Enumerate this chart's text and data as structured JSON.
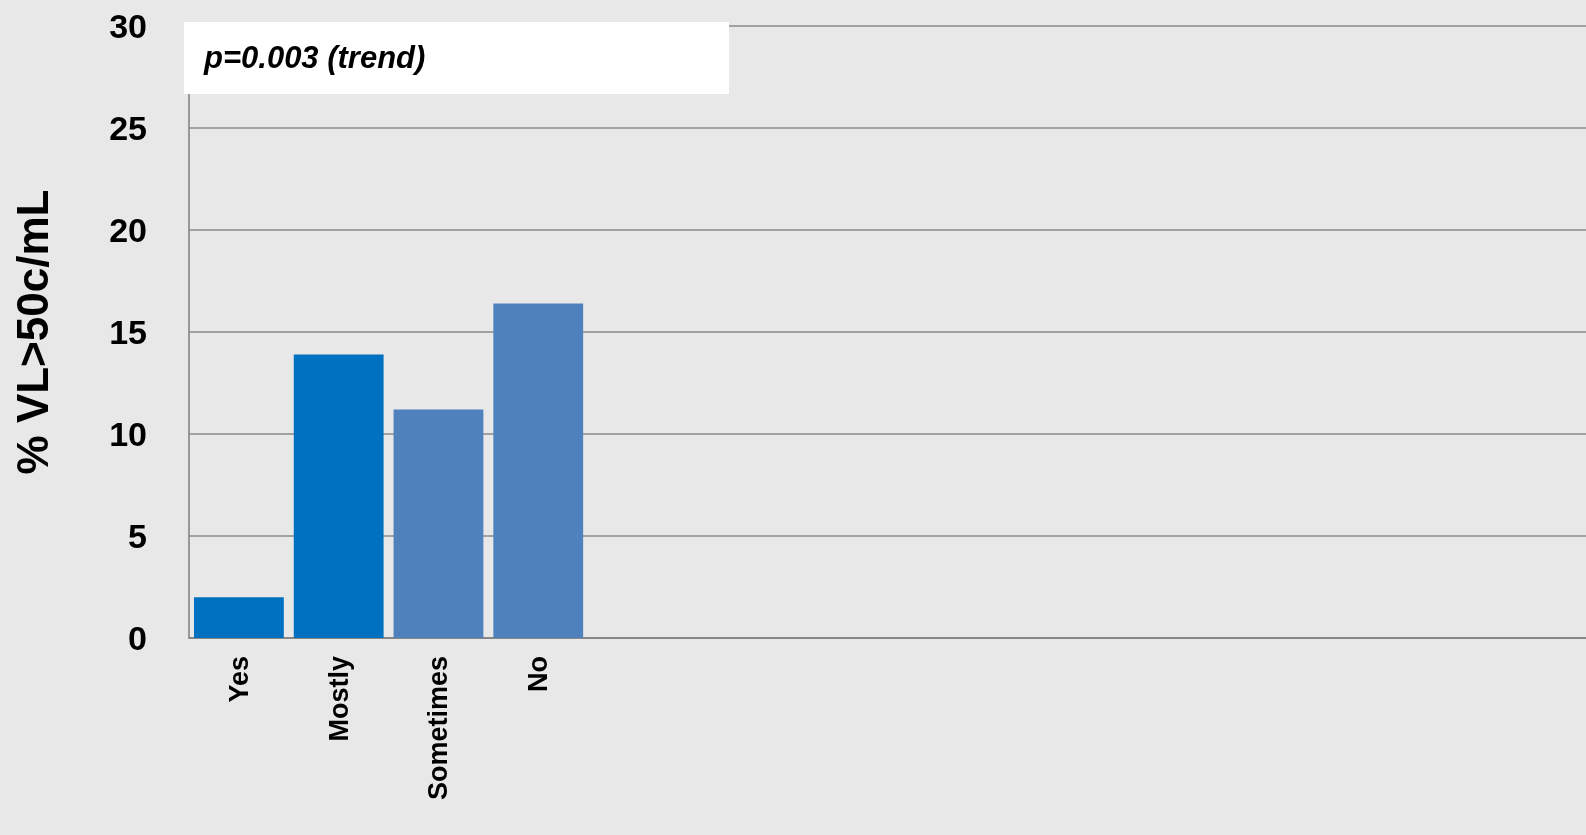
{
  "chart_data": {
    "type": "bar",
    "ylabel": "% VL>50c/mL",
    "categories": [
      "Yes",
      "Mostly",
      "Sometimes",
      "No",
      null,
      null,
      null,
      null,
      null,
      null,
      null,
      null,
      null,
      null
    ],
    "values": [
      2.0,
      13.9,
      11.2,
      16.4,
      null,
      null,
      null,
      null,
      null,
      null,
      null,
      null,
      null,
      null
    ],
    "colors": [
      "#0070c0",
      "#0070c0",
      "#4f81bd",
      "#4f81bd",
      null,
      null,
      null,
      null,
      null,
      null,
      null,
      null,
      null,
      null
    ],
    "ylim": [
      0,
      30
    ],
    "yticks": [
      0,
      5,
      10,
      15,
      20,
      25,
      30
    ],
    "grid": "y",
    "annotations": [
      "p=0.003 (trend)"
    ]
  }
}
